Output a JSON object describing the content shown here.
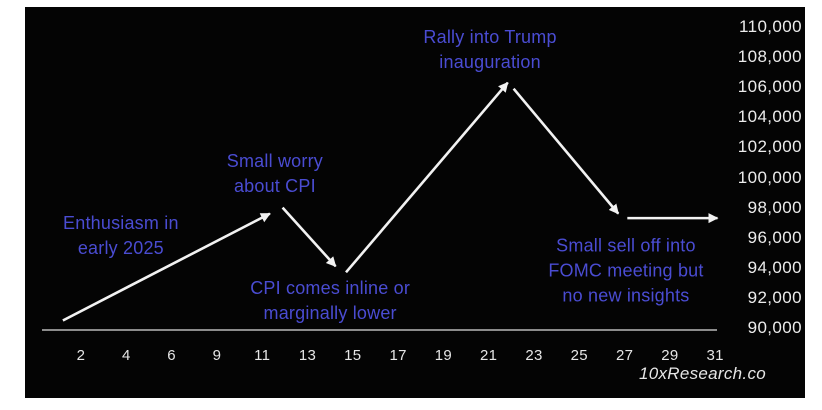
{
  "chart_data": {
    "type": "line",
    "description": "Hand-annotated price-path forecast chart (black background, white arrow segments)",
    "watermark": "10xResearch.co",
    "colors": {
      "background": "#040404",
      "page_margin": "#ffffff",
      "annotation_text": "#4a4cd2",
      "axis_text": "#ececec",
      "arrow": "#f2f2f2",
      "baseline": "#b9b9b9"
    },
    "x_axis": {
      "tick_labels": [
        "2",
        "4",
        "6",
        "9",
        "11",
        "13",
        "15",
        "17",
        "19",
        "21",
        "23",
        "25",
        "27",
        "29",
        "31"
      ]
    },
    "y_axis": {
      "tick_labels": [
        "110,000",
        "108,000",
        "106,000",
        "104,000",
        "102,000",
        "100,000",
        "98,000",
        "96,000",
        "94,000",
        "92,000",
        "90,000"
      ],
      "min": 90000,
      "max": 110000,
      "step": 2000
    },
    "segments": [
      {
        "name": "enthusiasm-rise",
        "from": {
          "t": -0.4,
          "v": 90500
        },
        "to": {
          "t": 4.17,
          "v": 97600
        }
      },
      {
        "name": "cpi-worry-dip",
        "from": {
          "t": 4.45,
          "v": 98000
        },
        "to": {
          "t": 5.62,
          "v": 94100
        }
      },
      {
        "name": "inauguration-rally",
        "from": {
          "t": 5.85,
          "v": 93700
        },
        "to": {
          "t": 9.42,
          "v": 106300
        }
      },
      {
        "name": "fomc-selloff",
        "from": {
          "t": 9.55,
          "v": 105900
        },
        "to": {
          "t": 11.86,
          "v": 97600
        }
      },
      {
        "name": "sideways-drift",
        "from": {
          "t": 12.06,
          "v": 97300
        },
        "to": {
          "t": 14.05,
          "v": 97300
        }
      }
    ],
    "annotations": [
      {
        "name": "enthusiasm",
        "lines": [
          "Enthusiasm in",
          "early 2025"
        ],
        "t": 0.88,
        "v": 96100
      },
      {
        "name": "small-worry",
        "lines": [
          "Small worry",
          "about CPI"
        ],
        "t": 4.28,
        "v": 100200
      },
      {
        "name": "cpi-inline",
        "lines": [
          "CPI comes inline or",
          "marginally lower"
        ],
        "t": 5.5,
        "v": 91800
      },
      {
        "name": "rally",
        "lines": [
          "Rally into Trump",
          "inauguration"
        ],
        "t": 9.03,
        "v": 108500
      },
      {
        "name": "fomc",
        "lines": [
          "Small sell off into",
          "FOMC meeting but",
          "no new insights"
        ],
        "t": 12.03,
        "v": 93800
      }
    ]
  }
}
